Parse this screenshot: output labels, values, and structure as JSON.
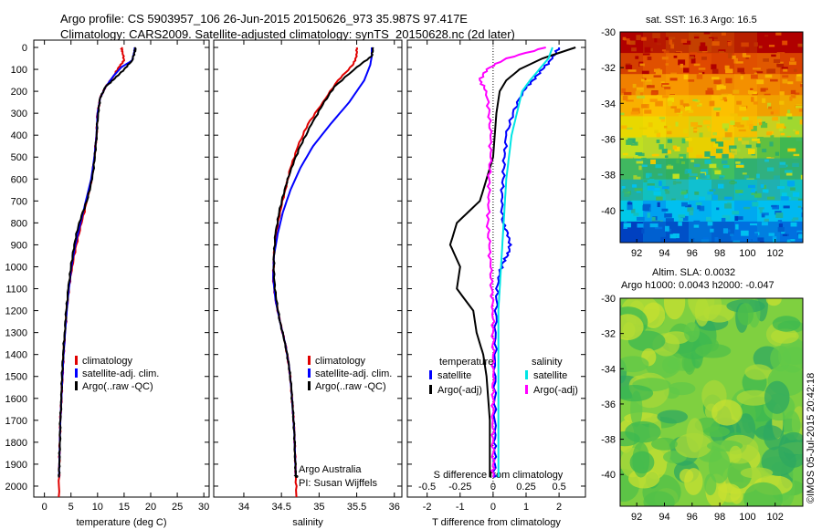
{
  "header": {
    "line1": "Argo profile: CS 5903957_106 26-Jun-2015 20150626_973 35.987S 97.417E",
    "line2": "Climatology: CARS2009. Satellite-adjusted climatology: synTS_20150628.nc (2d later)"
  },
  "credit": {
    "org": "Argo Australia",
    "pi": "PI: Susan Wijffels",
    "stamp": "©IMOS 05-Jul-2015 20:42:18"
  },
  "colors": {
    "climatology": "#e00000",
    "satellite": "#0000ff",
    "argo": "#000000",
    "salinity_sat": "#00e5e5",
    "salinity_argo": "#ff00ff"
  },
  "chart_data": [
    {
      "type": "line",
      "xlabel": "temperature (deg C)",
      "ylabel": "",
      "xlim": [
        -2,
        31
      ],
      "ylim": [
        2050,
        0
      ],
      "xticks": [
        0,
        5,
        10,
        15,
        20,
        25,
        30
      ],
      "yticks": [
        0,
        100,
        200,
        300,
        400,
        500,
        600,
        700,
        800,
        900,
        1000,
        1100,
        1200,
        1300,
        1400,
        1500,
        1600,
        1700,
        1800,
        1900,
        2000
      ],
      "legend": [
        "climatology",
        "satellite-adj. clim.",
        "Argo(..raw -QC)"
      ],
      "series": [
        {
          "name": "climatology",
          "color": "#e00000",
          "x": [
            14.5,
            14.7,
            15.0,
            14.0,
            13.0,
            11.5,
            10.5,
            10.0,
            9.8,
            9.4,
            8.9,
            8.0,
            7.0,
            6.0,
            5.2,
            4.6,
            4.2,
            3.9,
            3.6,
            3.4,
            3.2,
            3.0,
            2.9,
            2.8,
            2.7
          ],
          "y": [
            0,
            20,
            60,
            90,
            130,
            180,
            230,
            300,
            400,
            500,
            600,
            700,
            800,
            900,
            1000,
            1100,
            1200,
            1300,
            1400,
            1500,
            1600,
            1700,
            1800,
            1900,
            2050
          ]
        },
        {
          "name": "satellite-adj. clim.",
          "color": "#0000ff",
          "x": [
            17.0,
            16.9,
            16.5,
            14.5,
            13.0,
            11.5,
            10.5,
            10.0,
            9.8,
            9.4,
            8.8,
            7.8,
            6.8,
            5.8,
            5.1,
            4.6,
            4.2,
            3.9,
            3.6,
            3.4,
            3.2,
            3.0,
            2.9,
            2.8,
            2.75
          ],
          "y": [
            0,
            20,
            60,
            90,
            130,
            180,
            230,
            300,
            400,
            500,
            600,
            700,
            800,
            900,
            1000,
            1100,
            1200,
            1300,
            1400,
            1500,
            1600,
            1700,
            1800,
            1900,
            1960
          ]
        },
        {
          "name": "Argo(..raw -QC)",
          "color": "#000000",
          "x": [
            17.2,
            17.0,
            16.5,
            15.0,
            13.3,
            11.5,
            10.5,
            10.1,
            9.8,
            9.5,
            9.0,
            8.0,
            6.5,
            5.6,
            5.0,
            4.5,
            4.1,
            3.8,
            3.5,
            3.3,
            3.2,
            3.0,
            2.9,
            2.8,
            2.75
          ],
          "y": [
            0,
            20,
            60,
            100,
            140,
            180,
            230,
            300,
            400,
            500,
            600,
            700,
            800,
            900,
            1000,
            1100,
            1200,
            1300,
            1400,
            1500,
            1600,
            1700,
            1800,
            1900,
            1960
          ]
        }
      ]
    },
    {
      "type": "line",
      "xlabel": "salinity",
      "ylabel": "",
      "xlim": [
        33.6,
        36.1
      ],
      "ylim": [
        2050,
        0
      ],
      "xticks": [
        34,
        34.5,
        35,
        35.5,
        36
      ],
      "xticklabels": [
        "34",
        "34.5",
        "35",
        "35.5",
        "36"
      ],
      "legend": [
        "climatology",
        "satellite-adj. clim.",
        "Argo(..raw -QC)"
      ],
      "series": [
        {
          "name": "climatology",
          "color": "#e00000",
          "x": [
            35.5,
            35.5,
            35.45,
            35.25,
            35.05,
            34.85,
            34.72,
            34.62,
            34.55,
            34.48,
            34.43,
            34.4,
            34.39,
            34.42,
            34.48,
            34.55,
            34.6,
            34.63,
            34.65,
            34.67,
            34.68,
            34.69,
            34.7
          ],
          "y": [
            0,
            40,
            80,
            150,
            250,
            350,
            450,
            550,
            650,
            750,
            850,
            950,
            1050,
            1150,
            1250,
            1350,
            1450,
            1550,
            1650,
            1750,
            1850,
            1950,
            2050
          ]
        },
        {
          "name": "satellite-adj. clim.",
          "color": "#0000ff",
          "x": [
            35.7,
            35.7,
            35.68,
            35.6,
            35.4,
            35.15,
            34.92,
            34.75,
            34.62,
            34.52,
            34.45,
            34.4,
            34.39,
            34.42,
            34.48,
            34.55,
            34.6,
            34.63,
            34.65,
            34.67,
            34.68,
            34.69,
            34.7
          ],
          "y": [
            0,
            40,
            80,
            150,
            250,
            350,
            450,
            550,
            650,
            750,
            850,
            950,
            1050,
            1150,
            1250,
            1350,
            1450,
            1550,
            1650,
            1750,
            1850,
            1950,
            1960
          ]
        },
        {
          "name": "Argo(..raw -QC)",
          "color": "#000000",
          "x": [
            35.72,
            35.7,
            35.5,
            35.2,
            35.05,
            34.9,
            34.75,
            34.63,
            34.54,
            34.47,
            34.42,
            34.4,
            34.4,
            34.43,
            34.48,
            34.55,
            34.6,
            34.63,
            34.65,
            34.67,
            34.68,
            34.69,
            34.7
          ],
          "y": [
            0,
            40,
            90,
            180,
            260,
            350,
            450,
            550,
            650,
            750,
            850,
            950,
            1050,
            1150,
            1250,
            1350,
            1450,
            1550,
            1650,
            1750,
            1850,
            1950,
            1960
          ]
        }
      ]
    },
    {
      "type": "line",
      "xlabel": "T difference from climatology",
      "secondary_xlabel": "S difference from climatology",
      "xlim": [
        -2.6,
        2.8
      ],
      "ylim": [
        2050,
        0
      ],
      "xticks": [
        -2,
        -1,
        0,
        1,
        2
      ],
      "secondary_xticks": [
        -0.5,
        -0.25,
        0,
        0.25,
        0.5
      ],
      "legend_titles": [
        "temperature",
        "salinity"
      ],
      "legend": [
        "satellite",
        "Argo(-adj)",
        "satellite",
        "Argo(-adj)"
      ],
      "series": [
        {
          "name": "temperature satellite",
          "color": "#0000ff",
          "x": [
            2.0,
            1.8,
            1.5,
            1.2,
            0.9,
            0.6,
            0.4,
            0.35,
            0.3,
            0.25,
            0.3,
            0.5,
            0.5,
            0.3,
            0.15,
            0.1,
            0.08,
            0.06,
            0.05,
            0.05,
            0.05,
            0.05,
            0.05
          ],
          "y": [
            0,
            50,
            100,
            150,
            200,
            300,
            400,
            500,
            600,
            700,
            800,
            870,
            930,
            980,
            1050,
            1150,
            1300,
            1450,
            1600,
            1750,
            1850,
            1950,
            1960
          ]
        },
        {
          "name": "temperature Argo(-adj)",
          "color": "#000000",
          "x": [
            2.5,
            1.5,
            0.8,
            0.4,
            0.2,
            0.1,
            0.05,
            0.0,
            -0.2,
            -0.4,
            -1.1,
            -1.3,
            -1.0,
            -1.1,
            -0.6,
            -0.5,
            -0.3,
            -0.2,
            -0.15,
            -0.1,
            -0.1,
            -0.1,
            -0.1
          ],
          "y": [
            0,
            50,
            100,
            150,
            200,
            300,
            400,
            500,
            600,
            700,
            800,
            900,
            1000,
            1100,
            1200,
            1300,
            1400,
            1500,
            1600,
            1700,
            1800,
            1900,
            1960
          ]
        },
        {
          "name": "salinity satellite",
          "color": "#00e5e5",
          "x": [
            0.45,
            0.42,
            0.35,
            0.28,
            0.22,
            0.18,
            0.14,
            0.12,
            0.1,
            0.09,
            0.08,
            0.07,
            0.06,
            0.05,
            0.04,
            0.04,
            0.04,
            0.04,
            0.04,
            0.04,
            0.04,
            0.04,
            0.04
          ],
          "y": [
            0,
            50,
            100,
            150,
            200,
            300,
            400,
            500,
            600,
            700,
            800,
            900,
            1000,
            1100,
            1200,
            1300,
            1400,
            1500,
            1600,
            1700,
            1800,
            1900,
            1960
          ]
        },
        {
          "name": "salinity Argo(-adj)",
          "color": "#ff00ff",
          "x": [
            0.4,
            0.1,
            -0.05,
            -0.1,
            -0.05,
            -0.03,
            -0.02,
            -0.02,
            -0.03,
            -0.03,
            -0.04,
            -0.03,
            -0.02,
            -0.01,
            0.0,
            0.0,
            0.0,
            0.0,
            0.0,
            0.0,
            0.0,
            0.0,
            0.0
          ],
          "y": [
            0,
            50,
            100,
            150,
            200,
            300,
            400,
            500,
            600,
            700,
            800,
            900,
            1000,
            1100,
            1200,
            1300,
            1400,
            1500,
            1600,
            1700,
            1800,
            1900,
            1960
          ]
        }
      ]
    },
    {
      "type": "heatmap",
      "title": "sat. SST: 16.3 Argo: 16.5",
      "xlim": [
        90.8,
        104
      ],
      "ylim": [
        -41.8,
        -30
      ],
      "xticks": [
        92,
        94,
        96,
        98,
        100,
        102
      ],
      "yticks": [
        -30,
        -32,
        -34,
        -36,
        -38,
        -40
      ],
      "colormap": "jet",
      "rows_north_to_south": [
        "#b00000,#b81800,#c03000,#c44000,#c23400,#b82000,#b00000,#b00000",
        "#d44000,#e05000,#e86000,#e04800,#d84000,#e05000,#e05800,#d84000",
        "#f08000,#f49000,#f89800,#f08800,#f08800,#f49000,#f08400,#ec7800",
        "#f8b000,#fcc000,#f8b800,#f8b400,#fcc000,#f8b000,#f0a000,#f0a800",
        "#e8d800,#f0d800,#f0c800,#d8d010,#f8c800,#f4c000,#c8d020,#a0d830",
        "#c0e020,#b8d828,#98d030,#e8d000,#f0c800,#a0d030,#60c040,#40b850",
        "#40b860,#30b070,#30b060,#40b860,#40c060,#30b070,#30b080,#30b070",
        "#20b0a0,#10c0c0,#20b8b0,#10c0d0,#20b0a0,#10b8c0,#20b0b0,#10c0c0",
        "#00c8e8,#00a0f0,#00c0f0,#00b0f0,#00c0f0,#00a8f0,#00c0f0,#00b8f0",
        "#0040c0,#0060d0,#0050c8,#0070d8,#0060d0,#0070e0,#0080e0,#0070e0"
      ]
    },
    {
      "type": "heatmap",
      "title": "Altim. SLA: 0.0032",
      "subtitle": "Argo h1000: 0.0043 h2000: -0.047",
      "xlim": [
        90.8,
        104
      ],
      "ylim": [
        -41.8,
        -30
      ],
      "xticks": [
        92,
        94,
        96,
        98,
        100,
        102
      ],
      "yticks": [
        -30,
        -32,
        -34,
        -36,
        -38,
        -40
      ],
      "colormap": "jet"
    }
  ]
}
